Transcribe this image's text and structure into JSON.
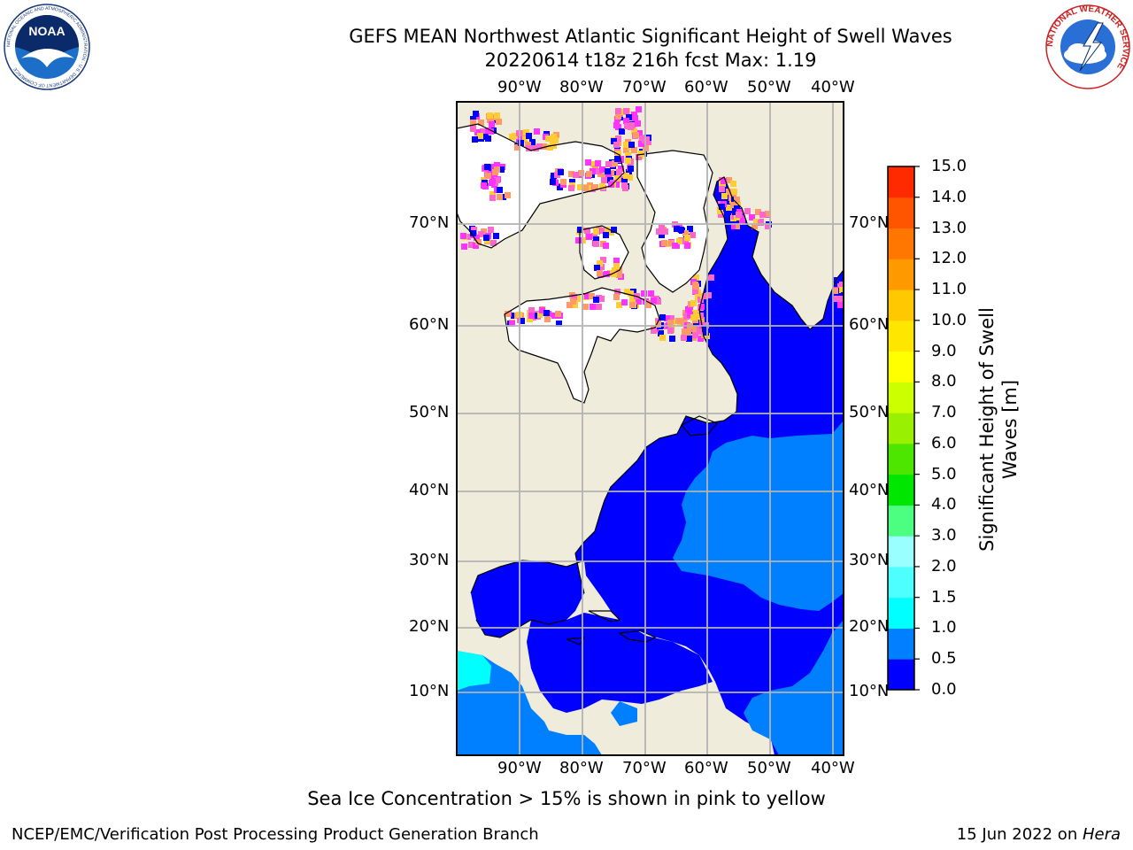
{
  "title": {
    "line1": "GEFS MEAN Northwest Atlantic Significant Height of Swell Waves",
    "line2": "20220614 t18z 216h fcst   Max: 1.19"
  },
  "map": {
    "lon_labels": [
      "90°W",
      "80°W",
      "70°W",
      "60°W",
      "50°W",
      "40°W"
    ],
    "lat_labels": [
      "70°N",
      "60°N",
      "50°N",
      "40°N",
      "30°N",
      "20°N",
      "10°N"
    ],
    "colors": {
      "land": "#efecdc",
      "ice": "#ffffff",
      "swell_0_0_5": "#0000ff",
      "swell_0_5_1_0": "#0080ff",
      "swell_1_0_1_5": "#00ffff",
      "ice_pink": "#ff66cc",
      "ice_magenta": "#ff33ff",
      "ice_orange": "#ff9966",
      "ice_yellow": "#ffcc33",
      "grid": "#b3b3b3"
    }
  },
  "colorbar": {
    "title": "Significant Height of Swell Waves [m]",
    "ticks": [
      "15.0",
      "14.0",
      "13.0",
      "12.0",
      "11.0",
      "10.0",
      "9.0",
      "8.0",
      "7.0",
      "6.0",
      "5.0",
      "4.0",
      "3.0",
      "2.0",
      "1.5",
      "1.0",
      "0.5",
      "0.0"
    ],
    "colors": [
      "#0000ff",
      "#0080ff",
      "#00ffff",
      "#4dffff",
      "#99ffff",
      "#4dff80",
      "#00e600",
      "#4de600",
      "#99f000",
      "#ccff00",
      "#ffff00",
      "#ffe600",
      "#ffc800",
      "#ff9900",
      "#ff7700",
      "#ff5500",
      "#ff2a00",
      "#ff0000"
    ]
  },
  "caption": "Sea Ice Concentration > 15% is shown in pink to yellow",
  "footer": {
    "left": "NCEP/EMC/Verification Post Processing Product Generation Branch",
    "right_date": "15 Jun 2022 on ",
    "right_host": "Hera"
  },
  "logos": {
    "noaa_text": "NOAA",
    "noaa_ring": "NATIONAL OCEANIC AND ATMOSPHERIC ADMINISTRATION · U.S. DEPARTMENT OF COMMERCE",
    "nws_ring": "NATIONAL WEATHER SERVICE"
  }
}
